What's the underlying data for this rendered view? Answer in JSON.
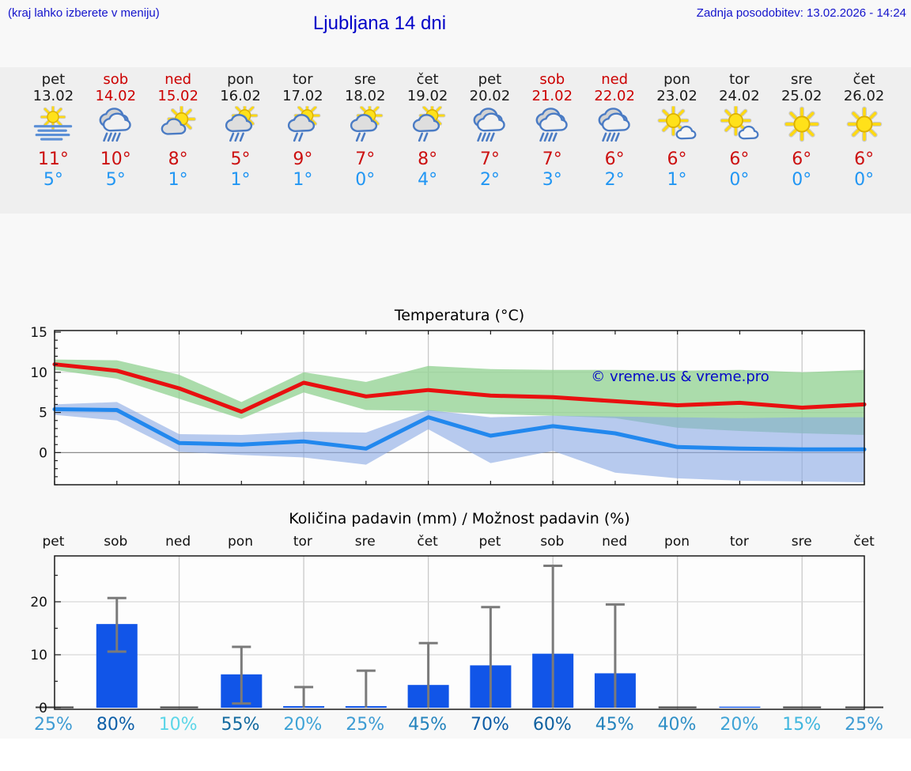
{
  "header": {
    "hint": "(kraj lahko izberete v meniju)",
    "title": "Ljubljana 14 dni",
    "updated": "Zadnja posodobitev: 13.02.2026 - 14:24"
  },
  "colors": {
    "accent_blue": "#0000c8",
    "high_temp": "#cc1111",
    "low_temp": "#2196f3",
    "weekend": "#cc0000",
    "bar_blue": "#1155e8",
    "error_bar": "#7a7a7a"
  },
  "days": [
    {
      "name": "pet",
      "date": "13.02",
      "weekend": false,
      "icon": "sun-fog",
      "high": "11°",
      "low": "5°"
    },
    {
      "name": "sob",
      "date": "14.02",
      "weekend": true,
      "icon": "cloud-rain",
      "high": "10°",
      "low": "5°"
    },
    {
      "name": "ned",
      "date": "15.02",
      "weekend": true,
      "icon": "sun-cloud",
      "high": "8°",
      "low": "1°"
    },
    {
      "name": "pon",
      "date": "16.02",
      "weekend": false,
      "icon": "sun-cloud-rain",
      "high": "5°",
      "low": "1°"
    },
    {
      "name": "tor",
      "date": "17.02",
      "weekend": false,
      "icon": "sun-cloud-light-rain",
      "high": "9°",
      "low": "1°"
    },
    {
      "name": "sre",
      "date": "18.02",
      "weekend": false,
      "icon": "sun-cloud-light-rain",
      "high": "7°",
      "low": "0°"
    },
    {
      "name": "čet",
      "date": "19.02",
      "weekend": false,
      "icon": "sun-cloud-light-rain",
      "high": "8°",
      "low": "4°"
    },
    {
      "name": "pet",
      "date": "20.02",
      "weekend": false,
      "icon": "cloud-rain",
      "high": "7°",
      "low": "2°"
    },
    {
      "name": "sob",
      "date": "21.02",
      "weekend": true,
      "icon": "cloud-rain",
      "high": "7°",
      "low": "3°"
    },
    {
      "name": "ned",
      "date": "22.02",
      "weekend": true,
      "icon": "cloud-rain",
      "high": "6°",
      "low": "2°"
    },
    {
      "name": "pon",
      "date": "23.02",
      "weekend": false,
      "icon": "sun-small-cloud",
      "high": "6°",
      "low": "1°"
    },
    {
      "name": "tor",
      "date": "24.02",
      "weekend": false,
      "icon": "sun-small-cloud",
      "high": "6°",
      "low": "0°"
    },
    {
      "name": "sre",
      "date": "25.02",
      "weekend": false,
      "icon": "sun",
      "high": "6°",
      "low": "0°"
    },
    {
      "name": "čet",
      "date": "26.02",
      "weekend": false,
      "icon": "sun",
      "high": "6°",
      "low": "0°"
    }
  ],
  "chart_data": [
    {
      "type": "line",
      "title": "Temperatura (°C)",
      "watermark": "© vreme.us & vreme.pro",
      "categories": [
        "pet",
        "sob",
        "ned",
        "pon",
        "tor",
        "sre",
        "čet",
        "pet",
        "sob",
        "ned",
        "pon",
        "tor",
        "sre",
        "čet"
      ],
      "ylim": [
        -4,
        15.2
      ],
      "yticks": [
        0,
        5,
        10,
        15
      ],
      "grid_at_day_index": [
        2,
        4,
        6,
        8,
        10,
        12
      ],
      "series": [
        {
          "name": "max-temperature",
          "color": "#e81010",
          "values": [
            11.0,
            10.2,
            8.0,
            5.1,
            8.7,
            7.0,
            7.8,
            7.1,
            6.9,
            6.4,
            5.9,
            6.2,
            5.6,
            6.0
          ]
        },
        {
          "name": "min-temperature",
          "color": "#2288ee",
          "values": [
            5.4,
            5.3,
            1.2,
            1.0,
            1.4,
            0.5,
            4.4,
            2.1,
            3.3,
            2.4,
            0.7,
            0.5,
            0.4,
            0.4
          ]
        }
      ],
      "bands": [
        {
          "name": "max-range",
          "color": "#8fd08f",
          "opacity": 0.75,
          "upper": [
            11.6,
            11.5,
            9.7,
            6.3,
            10.0,
            8.8,
            10.8,
            10.4,
            10.3,
            10.3,
            10.2,
            10.3,
            10.0,
            10.3
          ],
          "lower": [
            10.3,
            9.2,
            6.7,
            4.2,
            7.5,
            5.3,
            5.2,
            4.8,
            4.6,
            4.3,
            3.1,
            2.7,
            2.4,
            2.2
          ]
        },
        {
          "name": "min-range",
          "color": "#88a8e4",
          "opacity": 0.6,
          "upper": [
            6.0,
            6.3,
            2.3,
            2.2,
            2.6,
            2.5,
            5.3,
            4.4,
            4.6,
            4.5,
            4.4,
            4.3,
            4.4,
            4.4
          ],
          "lower": [
            4.7,
            4.0,
            0.1,
            -0.3,
            -0.6,
            -1.5,
            2.9,
            -1.3,
            0.2,
            -2.5,
            -3.2,
            -3.5,
            -3.6,
            -3.7
          ]
        }
      ]
    },
    {
      "type": "bar",
      "title": "Količina padavin (mm) / Možnost padavin (%)",
      "categories": [
        "pet",
        "sob",
        "ned",
        "pon",
        "tor",
        "sre",
        "čet",
        "pet",
        "sob",
        "ned",
        "pon",
        "tor",
        "sre",
        "čet"
      ],
      "values": [
        0.1,
        15.8,
        0.1,
        6.3,
        0.3,
        0.3,
        4.3,
        8.0,
        10.2,
        6.5,
        0.1,
        0.2,
        0.1,
        0.1
      ],
      "error_high": [
        null,
        20.7,
        null,
        11.5,
        3.9,
        7.0,
        12.2,
        19.0,
        26.8,
        19.5,
        null,
        null,
        null,
        null
      ],
      "error_low": [
        null,
        10.6,
        null,
        0.8,
        0,
        0,
        0,
        0,
        0,
        0,
        null,
        null,
        null,
        null
      ],
      "ylim": [
        0,
        28
      ],
      "yticks": [
        0,
        10,
        20
      ],
      "grid_at_day_index": [
        2,
        4,
        6,
        8,
        10,
        12
      ],
      "bar_color": "#1155e8",
      "probability": [
        {
          "label": "25%",
          "color": "#3d9bd3"
        },
        {
          "label": "80%",
          "color": "#0d5fa8"
        },
        {
          "label": "10%",
          "color": "#5cd6e8"
        },
        {
          "label": "55%",
          "color": "#11699f"
        },
        {
          "label": "20%",
          "color": "#3ea3d6"
        },
        {
          "label": "25%",
          "color": "#3d9bd3"
        },
        {
          "label": "45%",
          "color": "#2383bd"
        },
        {
          "label": "70%",
          "color": "#0d5ca6"
        },
        {
          "label": "60%",
          "color": "#0f61a0"
        },
        {
          "label": "45%",
          "color": "#2383bd"
        },
        {
          "label": "40%",
          "color": "#2e8fc6"
        },
        {
          "label": "20%",
          "color": "#3ea3d6"
        },
        {
          "label": "15%",
          "color": "#3fb6de"
        },
        {
          "label": "25%",
          "color": "#3d9bd3"
        }
      ]
    }
  ]
}
